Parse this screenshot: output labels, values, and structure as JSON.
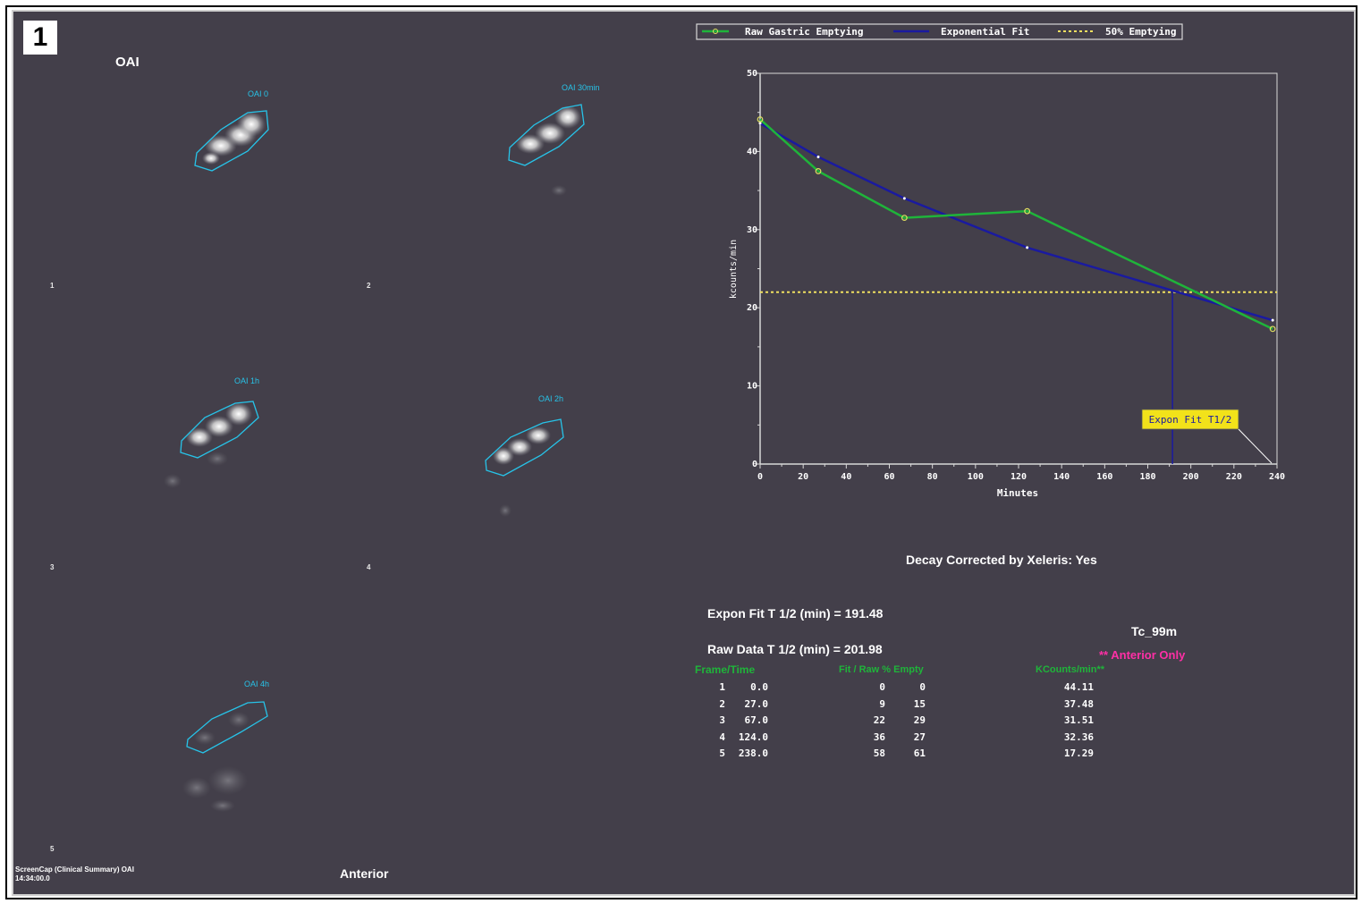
{
  "panel_badge": "1",
  "images": {
    "title": "OAI",
    "view": "Anterior",
    "frames": [
      {
        "label": "OAI 0",
        "number": "1"
      },
      {
        "label": "OAI 30min",
        "number": "2"
      },
      {
        "label": "OAI 1h",
        "number": "3"
      },
      {
        "label": "OAI 2h",
        "number": "4"
      },
      {
        "label": "OAI 4h",
        "number": "5"
      }
    ],
    "footer_line1": "ScreenCap (Clinical Summary) OAI",
    "footer_line2": "14:34:00.0"
  },
  "legend": {
    "raw": "Raw Gastric Emptying",
    "fit": "Exponential Fit",
    "half": "50% Emptying"
  },
  "chart_data": {
    "type": "line",
    "xlabel": "Minutes",
    "ylabel": "kcounts/min",
    "xlim": [
      0,
      240
    ],
    "ylim": [
      0,
      50
    ],
    "x_ticks": [
      "0",
      "20",
      "40",
      "60",
      "80",
      "100",
      "120",
      "140",
      "160",
      "180",
      "200",
      "220",
      "240"
    ],
    "y_ticks": [
      "0",
      "10",
      "20",
      "30",
      "40",
      "50"
    ],
    "grid": false,
    "legend_position": "top",
    "series": [
      {
        "name": "Raw Gastric Emptying",
        "color": "#1fb43a",
        "x": [
          0,
          27,
          67,
          124,
          238
        ],
        "y": [
          44.11,
          37.48,
          31.51,
          32.36,
          17.29
        ]
      },
      {
        "name": "Exponential Fit",
        "color": "#1a1aa0",
        "x": [
          0,
          27,
          67,
          124,
          238
        ],
        "y": [
          43.6,
          39.3,
          34.0,
          27.7,
          18.4
        ]
      },
      {
        "name": "50% Emptying",
        "color": "#f0e060",
        "style": "dashed",
        "x": [
          0,
          240
        ],
        "y": [
          22.0,
          22.0
        ]
      }
    ],
    "half_time_marker_x": 191.48,
    "annotation": "Expon Fit T1/2"
  },
  "results": {
    "decay_corrected": "Decay Corrected by Xeleris: Yes",
    "expon_fit": "Expon Fit T 1/2 (min) = 191.48",
    "raw_data": "Raw Data T 1/2 (min) = 201.98",
    "isotope": "Tc_99m",
    "anterior_only": "** Anterior Only"
  },
  "table": {
    "headers": {
      "frame_time": "Frame/Time",
      "fit_raw": "Fit / Raw % Empty",
      "kcounts": "KCounts/min**"
    },
    "rows": [
      {
        "frame": "1",
        "time": "0.0",
        "fit": "0",
        "raw": "0",
        "kc": "44.11"
      },
      {
        "frame": "2",
        "time": "27.0",
        "fit": "9",
        "raw": "15",
        "kc": "37.48"
      },
      {
        "frame": "3",
        "time": "67.0",
        "fit": "22",
        "raw": "29",
        "kc": "31.51"
      },
      {
        "frame": "4",
        "time": "124.0",
        "fit": "36",
        "raw": "27",
        "kc": "32.36"
      },
      {
        "frame": "5",
        "time": "238.0",
        "fit": "58",
        "raw": "61",
        "kc": "17.29"
      }
    ]
  }
}
